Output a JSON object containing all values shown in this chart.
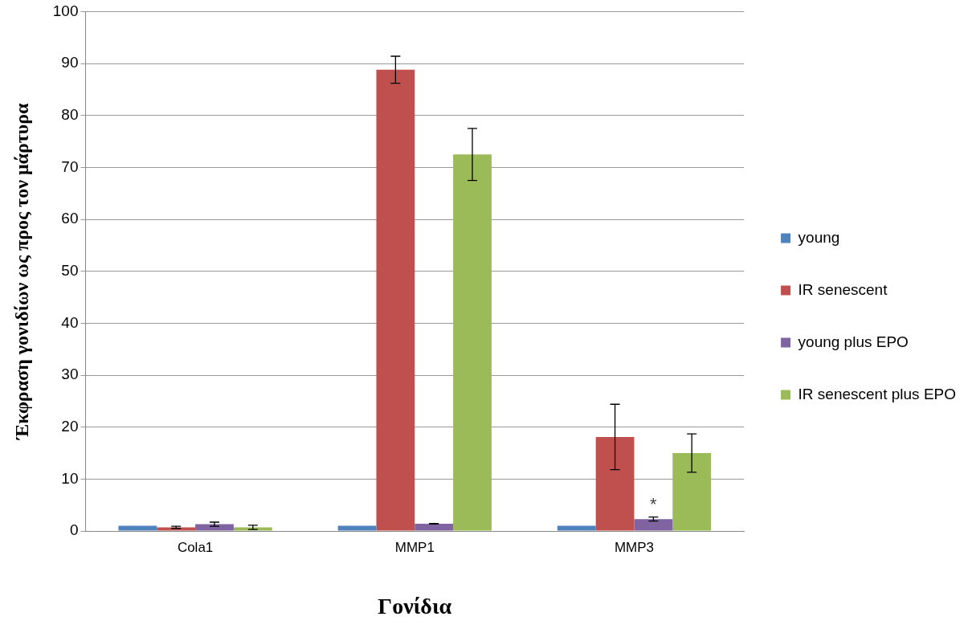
{
  "chart_data": {
    "type": "bar",
    "xlabel": "Γονίδια",
    "ylabel": "Έκφραση γονιδίων ως προς τον μάρτυρα",
    "categories": [
      "Cola1",
      "MMP1",
      "MMP3"
    ],
    "series": [
      {
        "name": "young",
        "color": "#4f81bd",
        "values": [
          1,
          1,
          1
        ]
      },
      {
        "name": "IR senescent",
        "color": "#c0504d",
        "values": [
          0.7,
          88.8,
          18.1
        ],
        "errors": [
          0.2,
          2.6,
          6.3
        ]
      },
      {
        "name": "young plus EPO",
        "color": "#8064a2",
        "values": [
          1.3,
          1.4,
          2.3
        ],
        "errors": [
          0.4,
          0.05,
          0.4
        ]
      },
      {
        "name": "IR senescent plus EPO",
        "color": "#9bbb59",
        "values": [
          0.7,
          72.5,
          15
        ],
        "errors": [
          0.4,
          5,
          3.7
        ]
      }
    ],
    "ylim": [
      0,
      100
    ],
    "yticks": [
      0,
      10,
      20,
      30,
      40,
      50,
      60,
      70,
      80,
      90,
      100
    ],
    "grid": "y",
    "legend": "right",
    "annotations": [
      {
        "text": "*",
        "x": "MMP3",
        "y": 5
      }
    ]
  }
}
